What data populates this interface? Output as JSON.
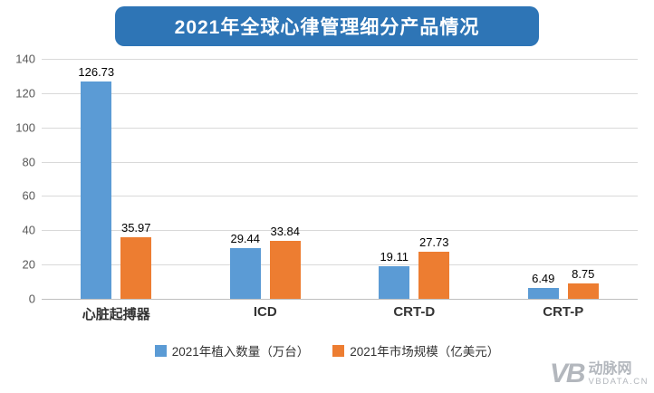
{
  "title": "2021年全球心律管理细分产品情况",
  "colors": {
    "banner": "#2E75B6",
    "series1": "#5B9BD5",
    "series2": "#ED7D31",
    "grid": "#D9D9D9"
  },
  "chart_data": {
    "type": "bar",
    "title": "2021年全球心律管理细分产品情况",
    "categories": [
      "心脏起搏器",
      "ICD",
      "CRT-D",
      "CRT-P"
    ],
    "series": [
      {
        "name": "2021年植入数量（万台）",
        "color": "#5B9BD5",
        "values": [
          126.73,
          29.44,
          19.11,
          6.49
        ]
      },
      {
        "name": "2021年市场规模（亿美元）",
        "color": "#ED7D31",
        "values": [
          35.97,
          33.84,
          27.73,
          8.75
        ]
      }
    ],
    "xlabel": "",
    "ylabel": "",
    "ylim": [
      0,
      140
    ],
    "yticks": [
      0,
      20,
      40,
      60,
      80,
      100,
      120,
      140
    ],
    "grid": true,
    "legend_position": "bottom"
  },
  "watermark": {
    "mark": "VB",
    "name": "动脉网",
    "domain": "VBDATA.CN"
  }
}
